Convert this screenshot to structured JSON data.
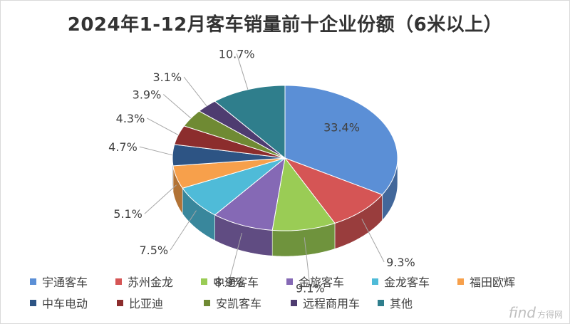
{
  "chart_data": {
    "type": "pie",
    "title": "2024年1-12月客车销量前十企业份额（6米以上）",
    "unit": "%",
    "categories": [
      "宇通客车",
      "苏州金龙",
      "中通客车",
      "金旅客车",
      "金龙客车",
      "福田欧辉",
      "中车电动",
      "比亚迪",
      "安凯客车",
      "远程商用车",
      "其他"
    ],
    "values": [
      33.4,
      9.3,
      9.1,
      8.9,
      7.5,
      5.1,
      4.7,
      4.3,
      3.9,
      3.1,
      10.7
    ],
    "data_labels": [
      "33.4%",
      "9.3%",
      "9.1%",
      "8.9%",
      "7.5%",
      "5.1%",
      "4.7%",
      "4.3%",
      "3.9%",
      "3.1%",
      "10.7%"
    ],
    "colors": [
      "#5B8FD6",
      "#D55555",
      "#9ACC55",
      "#8569B5",
      "#4FBBD8",
      "#F7A04B",
      "#2D5484",
      "#8C2D2D",
      "#6F8A33",
      "#4E3C70",
      "#2F7E8C"
    ],
    "legend_position": "bottom",
    "style": "3d-exploded-none"
  },
  "watermark": {
    "brand": "find",
    "sub": "方得网"
  }
}
